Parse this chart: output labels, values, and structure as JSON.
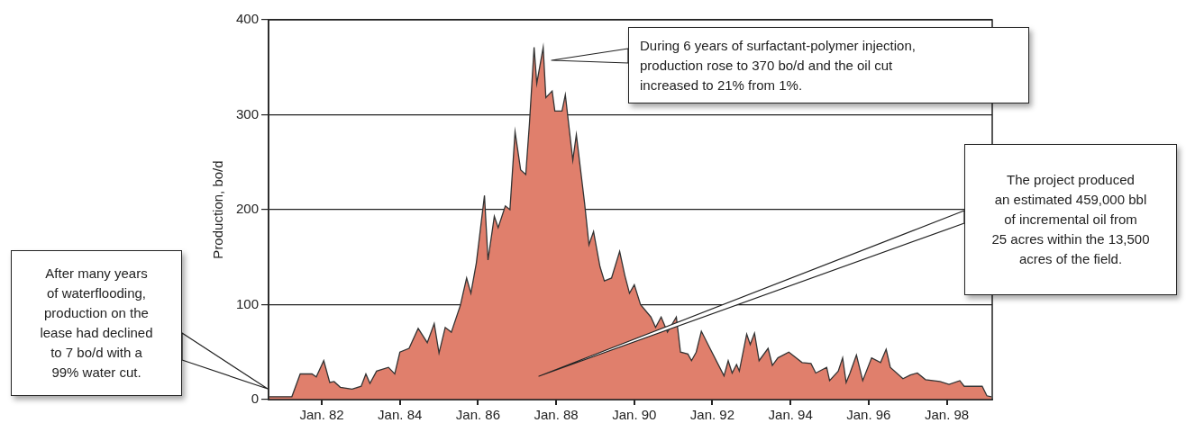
{
  "chart_data": {
    "type": "area",
    "ylabel": "Production, bo/d",
    "color": "#e07f6c",
    "x": [
      "1980-08-28",
      "1981-03-27",
      "1981-06-13",
      "1981-10-01",
      "1981-11-10",
      "1982-01-19",
      "1982-03-16",
      "1982-04-26",
      "1982-06-23",
      "1982-10-11",
      "1983-01-04",
      "1983-02-17",
      "1983-03-27",
      "1983-05-28",
      "1983-09-16",
      "1983-11-14",
      "1984-01-01",
      "1984-03-27",
      "1984-06-20",
      "1984-09-13",
      "1984-11-17",
      "1985-01-01",
      "1985-02-28",
      "1985-04-26",
      "1985-07-19",
      "1985-08-14",
      "1985-09-16",
      "1985-10-26",
      "1985-12-16",
      "1986-03-02",
      "1986-04-04",
      "1986-06-02",
      "1986-07-08",
      "1986-09-13",
      "1986-10-26",
      "1986-12-13",
      "1987-02-03",
      "1987-03-23",
      "1987-04-26",
      "1987-06-09",
      "1987-07-04",
      "1987-09-02",
      "1987-09-27",
      "1987-11-25",
      "1987-12-20",
      "1988-02-25",
      "1988-03-27",
      "1988-06-05",
      "1988-07-08",
      "1988-09-23",
      "1988-11-03",
      "1988-12-16",
      "1989-02-14",
      "1989-03-27",
      "1989-06-02",
      "1989-08-17",
      "1989-10-04",
      "1989-11-17",
      "1990-01-01",
      "1990-02-28",
      "1990-06-05",
      "1990-07-19",
      "1990-09-09",
      "1990-11-07",
      "1991-01-29",
      "1991-03-09",
      "1991-05-17",
      "1991-06-20",
      "1991-08-03",
      "1991-09-20",
      "1991-12-05",
      "1992-04-19",
      "1992-05-28",
      "1992-07-04",
      "1992-08-14",
      "1992-09-09",
      "1992-11-17",
      "1992-12-20",
      "1993-01-29",
      "1993-03-13",
      "1993-06-05",
      "1993-07-15",
      "1993-09-05",
      "1993-12-16",
      "1994-04-19",
      "1994-07-11",
      "1994-08-25",
      "1994-12-05",
      "1995-01-01",
      "1995-03-23",
      "1995-05-03",
      "1995-06-05",
      "1995-07-11",
      "1995-09-09",
      "1995-11-07",
      "1996-01-29",
      "1996-04-22",
      "1996-06-13",
      "1996-07-22",
      "1996-11-17",
      "1997-01-26",
      "1997-04-01",
      "1997-06-16",
      "1997-10-29",
      "1998-01-22",
      "1998-05-03",
      "1998-06-13",
      "1998-11-28",
      "1999-01-11",
      "1999-02-21"
    ],
    "values": [
      3,
      3,
      27,
      27,
      24,
      41,
      18,
      19,
      13,
      11,
      14,
      27,
      17,
      30,
      34,
      27,
      50,
      54,
      75,
      60,
      80,
      49,
      76,
      71,
      99,
      112,
      128,
      112,
      144,
      215,
      147,
      193,
      181,
      204,
      200,
      282,
      242,
      237,
      290,
      371,
      333,
      371,
      318,
      325,
      304,
      304,
      321,
      252,
      279,
      207,
      163,
      177,
      140,
      125,
      128,
      156,
      131,
      112,
      121,
      100,
      87,
      76,
      87,
      71,
      87,
      50,
      48,
      41,
      50,
      72,
      55,
      25,
      41,
      28,
      37,
      30,
      69,
      58,
      70,
      41,
      54,
      36,
      44,
      50,
      39,
      38,
      28,
      34,
      20,
      30,
      44,
      18,
      28,
      47,
      20,
      44,
      39,
      53,
      34,
      22,
      26,
      28,
      21,
      19,
      16,
      20,
      14,
      14,
      4,
      3
    ],
    "xlim": [
      "1980-08-21",
      "1999-03-02"
    ],
    "ylim": [
      0,
      400
    ],
    "xticks": [
      {
        "value": "1982-01-01",
        "label": "Jan. 82"
      },
      {
        "value": "1984-01-01",
        "label": "Jan. 84"
      },
      {
        "value": "1986-01-01",
        "label": "Jan. 86"
      },
      {
        "value": "1988-01-01",
        "label": "Jan. 88"
      },
      {
        "value": "1990-01-01",
        "label": "Jan. 90"
      },
      {
        "value": "1992-01-01",
        "label": "Jan. 92"
      },
      {
        "value": "1994-01-01",
        "label": "Jan. 94"
      },
      {
        "value": "1996-01-01",
        "label": "Jan. 96"
      },
      {
        "value": "1998-01-01",
        "label": "Jan. 98"
      }
    ],
    "yticks": [
      0,
      100,
      200,
      300,
      400
    ],
    "grid": "y",
    "annotations": [
      "After many years\nof waterflooding,\nproduction on the\nlease had declined\nto 7 bo/d with a\n99% water cut.",
      "During 6 years of surfactant-polymer injection,\nproduction rose to 370 bo/d and the oil cut\nincreased to 21% from 1%.",
      "The project produced\nan estimated 459,000 bbl\nof incremental oil from\n25 acres within the 13,500\nacres of the field."
    ]
  }
}
